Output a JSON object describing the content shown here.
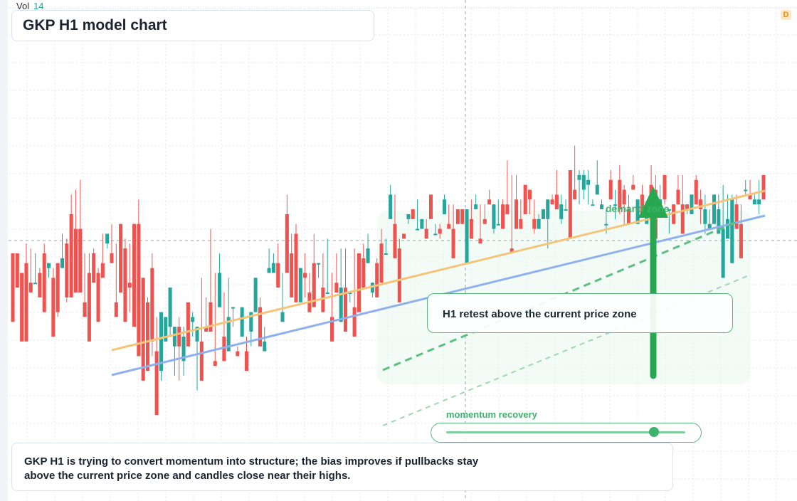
{
  "title": "GKP H1 model chart",
  "volume": {
    "label": "Vol",
    "value": "14"
  },
  "badge": "D",
  "callout": "H1 retest above the current price zone",
  "zone_label": "demand zone",
  "momentum": {
    "label": "momentum recovery",
    "level": 0.87
  },
  "note": {
    "line1": "GKP H1 is trying to convert momentum into structure; the bias improves if pullbacks stay",
    "line2": "above the current price zone and candles close near their highs."
  },
  "colors": {
    "up": "#26a69a",
    "down": "#ef5350",
    "accent": "#27a84f",
    "support": "#f5c478",
    "trend": "#8fb0ee",
    "grid": "#e3e8ef"
  },
  "chart_data": {
    "type": "candlestick",
    "timeframe": "H1",
    "symbol": "GKP",
    "ylim": [
      0,
      100
    ],
    "candles": [
      [
        50,
        50,
        44,
        36
      ],
      [
        50,
        50,
        45,
        43
      ],
      [
        46,
        46,
        38,
        32
      ],
      [
        48,
        52,
        43,
        32
      ],
      [
        44,
        51,
        47,
        42
      ],
      [
        44,
        50,
        49,
        44
      ],
      [
        46,
        47,
        47,
        41
      ],
      [
        50,
        52,
        44,
        38
      ],
      [
        47,
        47,
        45,
        48
      ],
      [
        45,
        47,
        46,
        33
      ],
      [
        48,
        48,
        37,
        38
      ],
      [
        47,
        54,
        49,
        49
      ],
      [
        52,
        53,
        40,
        41
      ],
      [
        58,
        61,
        62,
        41
      ],
      [
        55,
        63,
        63,
        42
      ],
      [
        55,
        65,
        64,
        42
      ],
      [
        40,
        50,
        48,
        37
      ],
      [
        46,
        50,
        48,
        32
      ],
      [
        50,
        51,
        51,
        44
      ],
      [
        46,
        47,
        45,
        36
      ],
      [
        48,
        54,
        54,
        45
      ],
      [
        52,
        51,
        52,
        54
      ],
      [
        50,
        56,
        54,
        48
      ],
      [
        40,
        52,
        48,
        37
      ],
      [
        56,
        56,
        50,
        42
      ],
      [
        51,
        53,
        48,
        36
      ],
      [
        44,
        52,
        38,
        43
      ],
      [
        56,
        56,
        42,
        35
      ],
      [
        56,
        61,
        61,
        29
      ],
      [
        45,
        45,
        38,
        24
      ],
      [
        40,
        41,
        30,
        26
      ],
      [
        47,
        50,
        29,
        32
      ],
      [
        30,
        37,
        37,
        17
      ],
      [
        26,
        26,
        24,
        38
      ],
      [
        32,
        37,
        32,
        37
      ],
      [
        35,
        40,
        33,
        43
      ],
      [
        31,
        33,
        25,
        35
      ],
      [
        35,
        37,
        24,
        31
      ],
      [
        28,
        35,
        25,
        33
      ],
      [
        40,
        40,
        37,
        31
      ],
      [
        36,
        38,
        33,
        37
      ],
      [
        32,
        33,
        22,
        35
      ],
      [
        32,
        45,
        45,
        24
      ],
      [
        35,
        41,
        36,
        34
      ],
      [
        40,
        55,
        52,
        34
      ],
      [
        28,
        46,
        31,
        27
      ],
      [
        39,
        47,
        50,
        46
      ],
      [
        33,
        42,
        34,
        28
      ],
      [
        30,
        45,
        34,
        37
      ],
      [
        39,
        35,
        35,
        39
      ],
      [
        30,
        31,
        31,
        29
      ],
      [
        33,
        37,
        34,
        39
      ],
      [
        30,
        33,
        31,
        26
      ],
      [
        34,
        38,
        31,
        38
      ],
      [
        38,
        45,
        44,
        45
      ],
      [
        39,
        41,
        34,
        31
      ],
      [
        30,
        35,
        34,
        32
      ],
      [
        46,
        51,
        49,
        47
      ],
      [
        46,
        50,
        49,
        48
      ],
      [
        48,
        52,
        52,
        43
      ],
      [
        36,
        46,
        36,
        38
      ],
      [
        58,
        62,
        56,
        46
      ],
      [
        50,
        54,
        52,
        41
      ],
      [
        54,
        56,
        48,
        40
      ],
      [
        40,
        41,
        40,
        47
      ],
      [
        46,
        50,
        41,
        45
      ],
      [
        42,
        46,
        43,
        38
      ],
      [
        48,
        54,
        54,
        39
      ],
      [
        48,
        45,
        45,
        48
      ],
      [
        43,
        50,
        46,
        38
      ],
      [
        42,
        53,
        47,
        42
      ],
      [
        37,
        46,
        42,
        32
      ],
      [
        44,
        50,
        43,
        42
      ],
      [
        36,
        51,
        41,
        43
      ],
      [
        43,
        51,
        46,
        34
      ],
      [
        42,
        40,
        41,
        42
      ],
      [
        39,
        51,
        39,
        33
      ],
      [
        50,
        50,
        50,
        38
      ],
      [
        49,
        50,
        52,
        43
      ],
      [
        48,
        54,
        52,
        51
      ],
      [
        42,
        44,
        41,
        44
      ],
      [
        48,
        49,
        46,
        41
      ],
      [
        52,
        55,
        51,
        44
      ],
      [
        50,
        53,
        51,
        50
      ],
      [
        57,
        64,
        63,
        62
      ],
      [
        56,
        62,
        61,
        49
      ],
      [
        51,
        53,
        42,
        40
      ],
      [
        54,
        54,
        53,
        53
      ],
      [
        57,
        58,
        56,
        58
      ],
      [
        59,
        59,
        57,
        57
      ],
      [
        55,
        61,
        57,
        55
      ],
      [
        55,
        56,
        55,
        57
      ],
      [
        55,
        57,
        55,
        53
      ],
      [
        62,
        62,
        59,
        57
      ],
      [
        54,
        55,
        56,
        54
      ],
      [
        55,
        56,
        53,
        54
      ],
      [
        58,
        62,
        62,
        61
      ],
      [
        56,
        60,
        56,
        55
      ],
      [
        55,
        60,
        58,
        49
      ],
      [
        59,
        58,
        57,
        56
      ],
      [
        59,
        57,
        58,
        56
      ],
      [
        48,
        55,
        58,
        59
      ],
      [
        57,
        61,
        53,
        53
      ],
      [
        59,
        62,
        60,
        60
      ],
      [
        53,
        60,
        53,
        52
      ],
      [
        57,
        60,
        57,
        56
      ],
      [
        61,
        62,
        63,
        60
      ],
      [
        55,
        54,
        56,
        60
      ],
      [
        56,
        61,
        57,
        56
      ],
      [
        60,
        61,
        57,
        55
      ],
      [
        60,
        67,
        69,
        58
      ],
      [
        51,
        66,
        66,
        50
      ],
      [
        61,
        62,
        66,
        55
      ],
      [
        57,
        61,
        59,
        55
      ],
      [
        64,
        63,
        64,
        58
      ],
      [
        63,
        63,
        58,
        61
      ],
      [
        57,
        61,
        54,
        55
      ],
      [
        55,
        58,
        56,
        57
      ],
      [
        57,
        59,
        59,
        59
      ],
      [
        57,
        60,
        51,
        61
      ],
      [
        61,
        62,
        61,
        60
      ],
      [
        62,
        66,
        67,
        59
      ],
      [
        57,
        56,
        62,
        60
      ],
      [
        59,
        60,
        61,
        59
      ],
      [
        67,
        67,
        57,
        53
      ],
      [
        63,
        72,
        71,
        61
      ],
      [
        65,
        67,
        60,
        66
      ],
      [
        63,
        67,
        61,
        66
      ],
      [
        64,
        67,
        60,
        65
      ],
      [
        60,
        61,
        61,
        60
      ],
      [
        62,
        69,
        67,
        64
      ],
      [
        59,
        61,
        59,
        60
      ],
      [
        56,
        59,
        54,
        56
      ],
      [
        65,
        67,
        61,
        61
      ],
      [
        60,
        63,
        57,
        60
      ],
      [
        65,
        68,
        58,
        59
      ],
      [
        63,
        64,
        56,
        60
      ],
      [
        59,
        62,
        58,
        56
      ],
      [
        64,
        66,
        63,
        63
      ],
      [
        56,
        60,
        56,
        61
      ],
      [
        62,
        64,
        60,
        58
      ],
      [
        56,
        57,
        56,
        60
      ],
      [
        64,
        68,
        64,
        62
      ],
      [
        63,
        66,
        58,
        53
      ],
      [
        60,
        64,
        62,
        61
      ],
      [
        66,
        65,
        60,
        61
      ],
      [
        59,
        59,
        54,
        59
      ],
      [
        60,
        59,
        56,
        56
      ],
      [
        63,
        66,
        63,
        60
      ],
      [
        60,
        66,
        56,
        54
      ],
      [
        60,
        58,
        58,
        59
      ],
      [
        58,
        61,
        58,
        62
      ],
      [
        65,
        66,
        60,
        60
      ],
      [
        61,
        63,
        56,
        59
      ],
      [
        56,
        62,
        54,
        59
      ],
      [
        55,
        59,
        58,
        56
      ],
      [
        56,
        61,
        61,
        62
      ],
      [
        54,
        62,
        56,
        59
      ],
      [
        45,
        64,
        49,
        55
      ],
      [
        53,
        62,
        59,
        57
      ],
      [
        48,
        61,
        62,
        61
      ],
      [
        60,
        62,
        56,
        55
      ],
      [
        56,
        60,
        57,
        49
      ],
      [
        63,
        65,
        62,
        63
      ],
      [
        62,
        64,
        65,
        61
      ],
      [
        60,
        62,
        62,
        61
      ],
      [
        60,
        58,
        65,
        61
      ],
      [
        66,
        63,
        64,
        61
      ]
    ]
  }
}
